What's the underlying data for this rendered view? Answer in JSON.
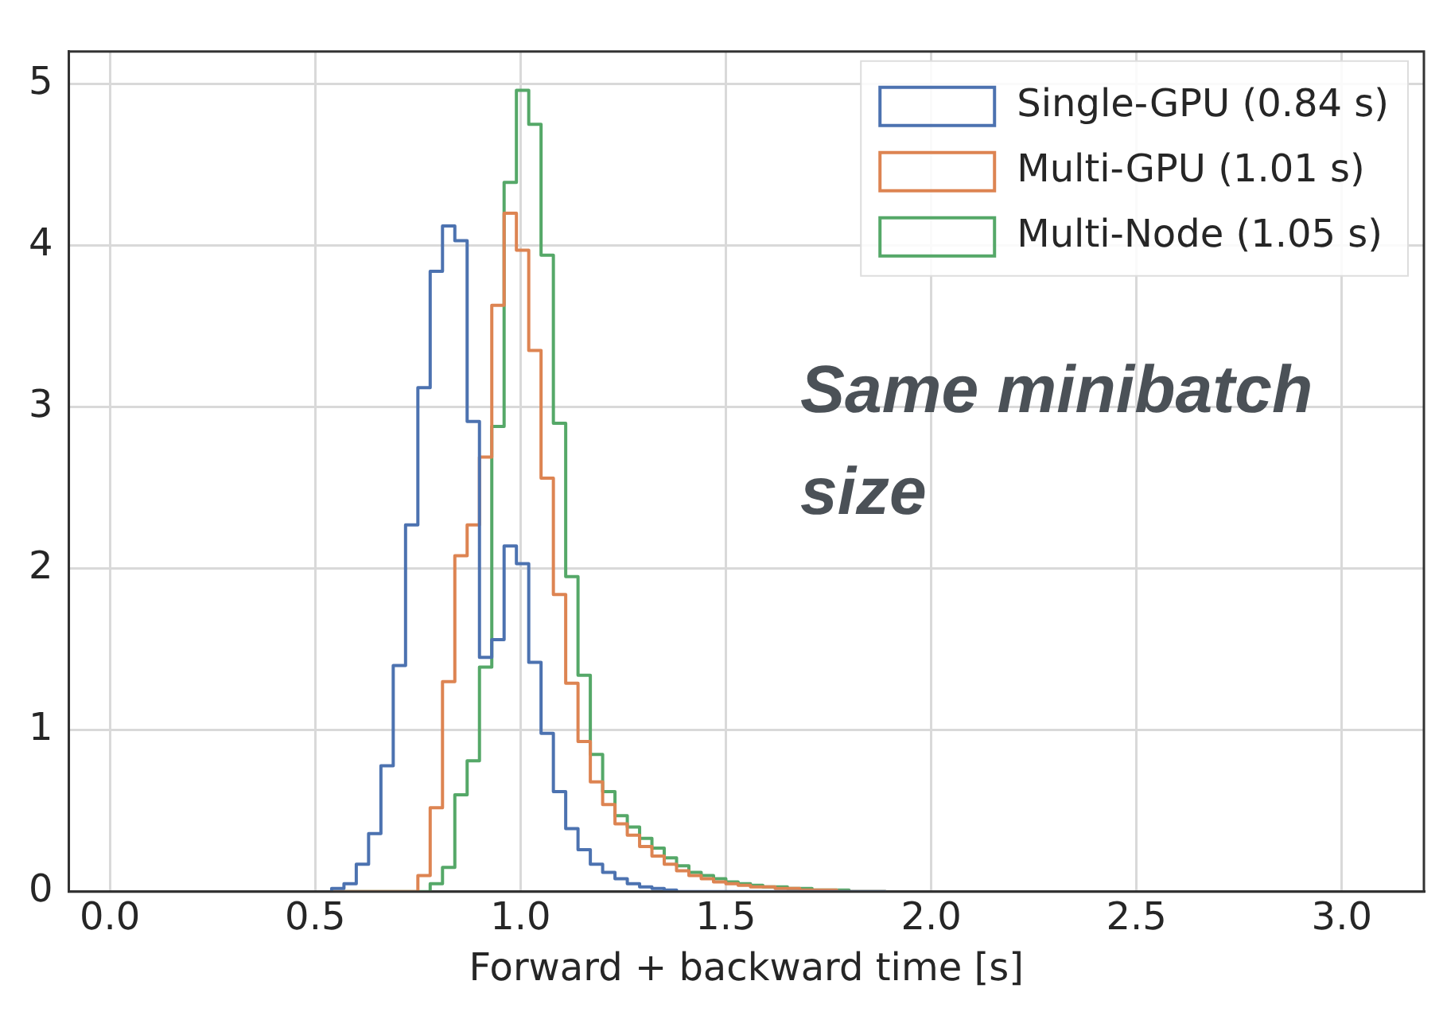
{
  "chart_data": {
    "type": "histogram",
    "xlabel": "Forward + backward time [s]",
    "bins": [
      0.54,
      0.57,
      0.6,
      0.63,
      0.66,
      0.69,
      0.72,
      0.75,
      0.78,
      0.81,
      0.84,
      0.87,
      0.9,
      0.93,
      0.96,
      0.99,
      1.02,
      1.05,
      1.08,
      1.11,
      1.14,
      1.17,
      1.2,
      1.23,
      1.26,
      1.29,
      1.32,
      1.35,
      1.38,
      1.41,
      1.44,
      1.47,
      1.5,
      1.53,
      1.56,
      1.59,
      1.62,
      1.65,
      1.68,
      1.71,
      1.74,
      1.77,
      1.8,
      1.83,
      1.86,
      1.89
    ],
    "series": [
      {
        "name": "Single-GPU (0.84 s)",
        "color": "#4c72b0",
        "values": [
          0.02,
          0.05,
          0.17,
          0.36,
          0.78,
          1.4,
          2.27,
          3.12,
          3.84,
          4.12,
          4.03,
          2.91,
          1.45,
          1.56,
          2.14,
          2.03,
          1.42,
          0.98,
          0.62,
          0.39,
          0.26,
          0.17,
          0.12,
          0.08,
          0.05,
          0.03,
          0.02,
          0.01,
          0,
          0,
          0,
          0,
          0,
          0,
          0,
          0,
          0,
          0,
          0,
          0,
          0,
          0,
          0,
          0,
          0
        ]
      },
      {
        "name": "Multi-GPU (1.01 s)",
        "color": "#dd8452",
        "values": [
          0,
          0,
          0,
          0,
          0,
          0,
          0,
          0.1,
          0.52,
          1.3,
          2.08,
          2.27,
          2.69,
          3.63,
          4.2,
          3.97,
          3.35,
          2.56,
          1.84,
          1.29,
          0.93,
          0.68,
          0.54,
          0.42,
          0.35,
          0.28,
          0.22,
          0.17,
          0.13,
          0.1,
          0.08,
          0.06,
          0.05,
          0.04,
          0.03,
          0.03,
          0.02,
          0.02,
          0.01,
          0.01,
          0.01,
          0,
          0,
          0,
          0
        ]
      },
      {
        "name": "Multi-Node (1.05 s)",
        "color": "#55a868",
        "values": [
          0,
          0,
          0,
          0,
          0,
          0,
          0,
          0,
          0.05,
          0.15,
          0.6,
          0.81,
          1.39,
          2.88,
          4.39,
          4.96,
          4.75,
          3.94,
          2.9,
          1.95,
          1.34,
          0.85,
          0.62,
          0.47,
          0.4,
          0.33,
          0.27,
          0.21,
          0.16,
          0.12,
          0.1,
          0.08,
          0.06,
          0.05,
          0.04,
          0.03,
          0.03,
          0.02,
          0.02,
          0.01,
          0.01,
          0.01,
          0,
          0,
          0
        ]
      }
    ],
    "xlim": [
      -0.1,
      3.2
    ],
    "xticks": [
      {
        "value": 0,
        "label": "0.0"
      },
      0.5,
      {
        "value": 1,
        "label": "1.0"
      },
      1.5,
      {
        "value": 2,
        "label": "2.0"
      },
      2.5,
      {
        "value": 3,
        "label": "3.0"
      }
    ],
    "ylim": [
      0,
      5.2
    ],
    "yticks": [
      0,
      1,
      2,
      3,
      4,
      5
    ],
    "grid": true,
    "legend": "top right",
    "annotations": [
      "Same minibatch size"
    ]
  }
}
